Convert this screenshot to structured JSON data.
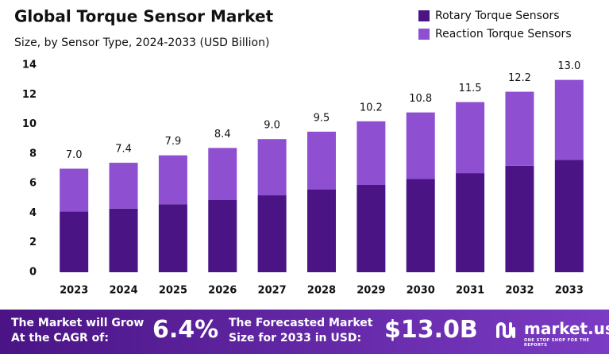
{
  "chart_data": {
    "type": "stacked_bar",
    "title": "Global Torque Sensor Market",
    "subtitle": "Size, by Sensor Type, 2024-2033 (USD Billion)",
    "categories": [
      "2023",
      "2024",
      "2025",
      "2026",
      "2027",
      "2028",
      "2029",
      "2030",
      "2031",
      "2032",
      "2033"
    ],
    "series": [
      {
        "name": "Rotary Torque Sensors",
        "color": "#4a1485",
        "values": [
          4.1,
          4.3,
          4.6,
          4.9,
          5.2,
          5.6,
          5.9,
          6.3,
          6.7,
          7.2,
          7.6
        ]
      },
      {
        "name": "Reaction Torque Sensors",
        "color": "#8e4fd1",
        "values": [
          2.9,
          3.1,
          3.3,
          3.5,
          3.8,
          3.9,
          4.3,
          4.5,
          4.8,
          5.0,
          5.4
        ]
      }
    ],
    "totals": [
      7.0,
      7.4,
      7.9,
      8.4,
      9.0,
      9.5,
      10.2,
      10.8,
      11.5,
      12.2,
      13.0
    ],
    "total_labels": [
      "7.0",
      "7.4",
      "7.9",
      "8.4",
      "9.0",
      "9.5",
      "10.2",
      "10.8",
      "11.5",
      "12.2",
      "13.0"
    ],
    "ylim": [
      0,
      14
    ],
    "yticks": [
      0,
      2,
      4,
      6,
      8,
      10,
      12,
      14
    ],
    "grid": false,
    "legend": "top-right"
  },
  "banner": {
    "cagr_text": "The Market will Grow At the CAGR of:",
    "cagr": "6.4%",
    "forecast_text": "The Forecasted Market Size for 2033 in USD:",
    "forecast": "$13.0B",
    "brand": "market.us",
    "tagline": "ONE STOP SHOP FOR THE REPORTS"
  }
}
